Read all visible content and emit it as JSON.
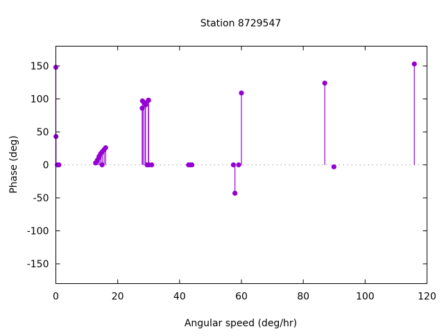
{
  "chart_data": {
    "type": "scatter",
    "style": "impulses-with-points",
    "title": "Station 8729547",
    "xlabel": "Angular speed (deg/hr)",
    "ylabel": "Phase (deg)",
    "xlim": [
      0,
      120
    ],
    "ylim": [
      -180,
      180
    ],
    "xticks": [
      0,
      20,
      40,
      60,
      80,
      100,
      120
    ],
    "yticks": [
      -150,
      -100,
      -50,
      0,
      50,
      100,
      150
    ],
    "zero_line": "dotted",
    "grid": false,
    "color": "#9400d3",
    "points": [
      {
        "x": 0.0,
        "y": 148
      },
      {
        "x": 0.04,
        "y": 43
      },
      {
        "x": 0.5,
        "y": 0
      },
      {
        "x": 1.0,
        "y": 0
      },
      {
        "x": 12.85,
        "y": 3
      },
      {
        "x": 13.4,
        "y": 7
      },
      {
        "x": 13.9,
        "y": 11
      },
      {
        "x": 14.0,
        "y": 13
      },
      {
        "x": 14.5,
        "y": 17
      },
      {
        "x": 14.96,
        "y": 0
      },
      {
        "x": 15.0,
        "y": 20
      },
      {
        "x": 15.6,
        "y": 23
      },
      {
        "x": 16.1,
        "y": 26
      },
      {
        "x": 27.9,
        "y": 86
      },
      {
        "x": 28.0,
        "y": 97
      },
      {
        "x": 28.4,
        "y": 95
      },
      {
        "x": 28.9,
        "y": 93
      },
      {
        "x": 29.0,
        "y": 91
      },
      {
        "x": 29.5,
        "y": 0
      },
      {
        "x": 29.9,
        "y": 98
      },
      {
        "x": 30.0,
        "y": 98
      },
      {
        "x": 30.1,
        "y": 0
      },
      {
        "x": 31.0,
        "y": 0
      },
      {
        "x": 42.9,
        "y": 0
      },
      {
        "x": 43.5,
        "y": 0
      },
      {
        "x": 44.0,
        "y": 0
      },
      {
        "x": 57.4,
        "y": 0
      },
      {
        "x": 57.9,
        "y": -43
      },
      {
        "x": 59.1,
        "y": 0
      },
      {
        "x": 60.0,
        "y": 109
      },
      {
        "x": 86.95,
        "y": 124
      },
      {
        "x": 89.9,
        "y": -3
      },
      {
        "x": 115.9,
        "y": 153
      }
    ]
  }
}
